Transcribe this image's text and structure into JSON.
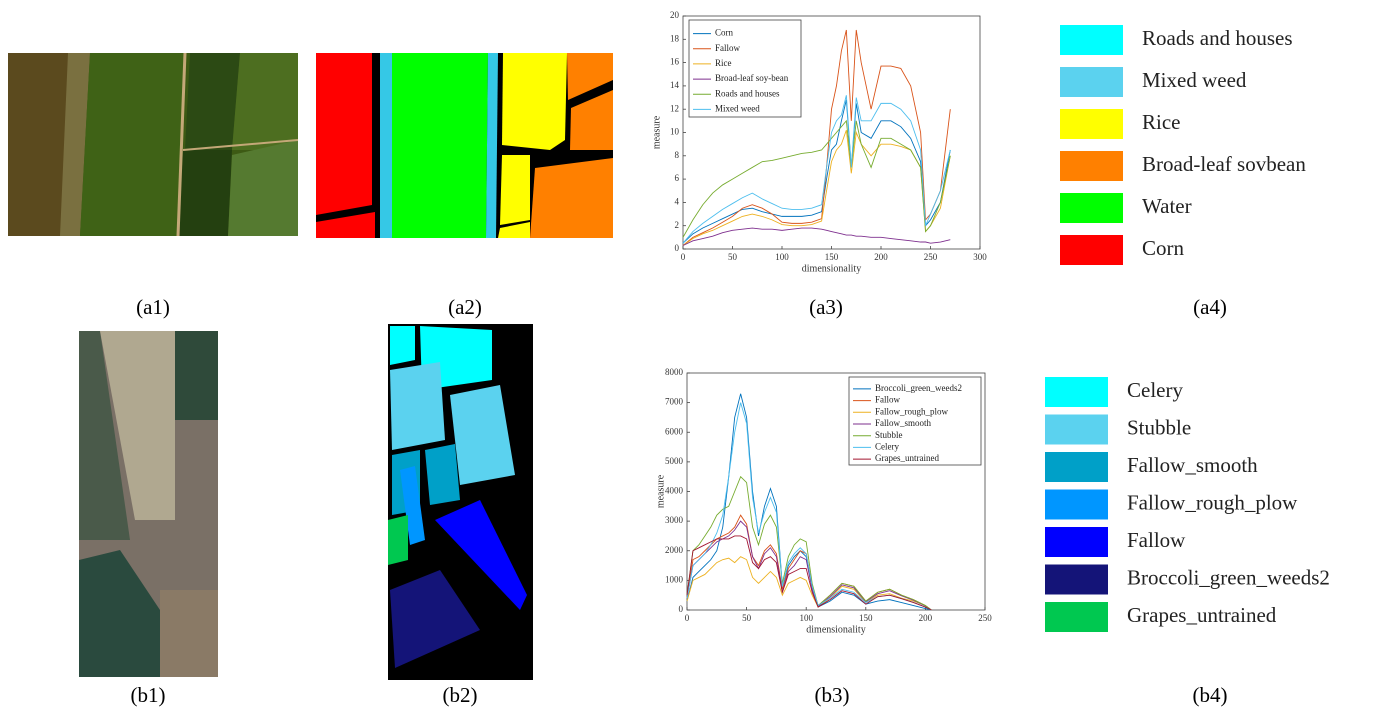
{
  "chart_data": [
    {
      "type": "line",
      "xlabel": "dimensionality",
      "ylabel": "measure",
      "legend": "upper left",
      "x": [
        0,
        10,
        20,
        30,
        40,
        50,
        60,
        70,
        80,
        90,
        100,
        110,
        120,
        130,
        140,
        145,
        150,
        155,
        160,
        165,
        170,
        175,
        180,
        190,
        200,
        210,
        220,
        230,
        240,
        245,
        250,
        260,
        270
      ],
      "xlim": [
        0,
        300
      ],
      "xticks": [
        0,
        50,
        100,
        150,
        200,
        250,
        300
      ],
      "ylim": [
        0,
        20
      ],
      "yticks": [
        0,
        2,
        4,
        6,
        8,
        10,
        12,
        14,
        16,
        18,
        20
      ],
      "series": [
        {
          "name": "Corn",
          "color": "#0072bd",
          "values": [
            0.5,
            1.3,
            1.8,
            2.2,
            2.6,
            3.0,
            3.4,
            3.5,
            3.2,
            3.0,
            2.8,
            2.8,
            2.8,
            2.9,
            3.2,
            6,
            8.5,
            9,
            11,
            12.8,
            7,
            12.5,
            10,
            9.5,
            11,
            11,
            10.5,
            9.5,
            7.5,
            2,
            2.5,
            4,
            8.5
          ]
        },
        {
          "name": "Fallow",
          "color": "#d95319",
          "values": [
            0.3,
            1,
            1.4,
            1.8,
            2.3,
            2.8,
            3.5,
            3.8,
            3.5,
            3,
            2.3,
            2.2,
            2.2,
            2.3,
            2.6,
            7,
            12,
            14,
            17,
            18.8,
            11,
            18.8,
            16,
            12,
            15.7,
            15.7,
            15.5,
            14,
            10,
            2.5,
            3,
            5,
            12
          ]
        },
        {
          "name": "Rice",
          "color": "#edb120",
          "values": [
            0.3,
            0.9,
            1.3,
            1.6,
            2,
            2.4,
            2.8,
            3,
            2.8,
            2.5,
            2.1,
            2,
            2,
            2.1,
            2.4,
            5,
            7.5,
            8.5,
            9,
            10.2,
            6.5,
            10,
            9,
            8,
            9,
            9,
            8.8,
            8.5,
            7,
            1.5,
            2,
            3.5,
            8
          ]
        },
        {
          "name": "Broad-leaf soy-bean",
          "color": "#7e2f8e",
          "values": [
            0.3,
            0.7,
            0.9,
            1.1,
            1.4,
            1.6,
            1.7,
            1.8,
            1.7,
            1.7,
            1.6,
            1.7,
            1.8,
            1.8,
            1.7,
            1.6,
            1.5,
            1.4,
            1.3,
            1.2,
            1.2,
            1.1,
            1.1,
            1,
            1,
            0.9,
            0.8,
            0.7,
            0.6,
            0.6,
            0.5,
            0.6,
            0.8
          ]
        },
        {
          "name": "Roads and houses",
          "color": "#77ac30",
          "values": [
            1,
            2.5,
            3.8,
            4.8,
            5.5,
            6,
            6.5,
            7,
            7.5,
            7.6,
            7.8,
            8,
            8.2,
            8.3,
            8.5,
            9,
            9.5,
            10,
            10.5,
            11,
            7,
            11,
            9,
            7,
            9.5,
            9.5,
            9,
            8.5,
            7,
            1.5,
            2,
            4,
            8
          ]
        },
        {
          "name": "Mixed weed",
          "color": "#4dbeee",
          "values": [
            0.5,
            1.5,
            2.2,
            2.8,
            3.4,
            3.9,
            4.4,
            4.8,
            4.3,
            3.9,
            3.5,
            3.4,
            3.4,
            3.5,
            3.8,
            7,
            10,
            11,
            11.5,
            13.2,
            7,
            13,
            11,
            11,
            12.5,
            12.5,
            12,
            11,
            8.5,
            2,
            3,
            5,
            8.5
          ]
        }
      ]
    },
    {
      "type": "line",
      "xlabel": "dimensionality",
      "ylabel": "measure",
      "legend": "upper right",
      "x": [
        0,
        5,
        10,
        15,
        20,
        25,
        30,
        35,
        40,
        45,
        50,
        55,
        60,
        65,
        70,
        75,
        80,
        85,
        90,
        95,
        100,
        105,
        110,
        120,
        130,
        140,
        150,
        160,
        170,
        180,
        190,
        200,
        205
      ],
      "xlim": [
        0,
        250
      ],
      "xticks": [
        0,
        50,
        100,
        150,
        200,
        250
      ],
      "ylim": [
        0,
        8000
      ],
      "yticks": [
        0,
        1000,
        2000,
        3000,
        4000,
        5000,
        6000,
        7000,
        8000
      ],
      "series": [
        {
          "name": "Broccoli_green_weeds2",
          "color": "#0072bd",
          "values": [
            300,
            1100,
            1300,
            1500,
            1700,
            2000,
            2800,
            4500,
            6500,
            7300,
            6500,
            4000,
            2500,
            3500,
            4100,
            3500,
            800,
            1500,
            1800,
            2000,
            1800,
            700,
            100,
            300,
            600,
            500,
            200,
            300,
            350,
            250,
            150,
            50,
            0
          ]
        },
        {
          "name": "Fallow",
          "color": "#d95319",
          "values": [
            400,
            1700,
            1800,
            2000,
            2200,
            2400,
            2500,
            2600,
            2800,
            3200,
            2900,
            1800,
            1500,
            2000,
            2200,
            1900,
            700,
            1400,
            1700,
            2000,
            1900,
            800,
            150,
            500,
            900,
            800,
            300,
            600,
            700,
            500,
            350,
            150,
            0
          ]
        },
        {
          "name": "Fallow_rough_plow",
          "color": "#edb120",
          "values": [
            300,
            1000,
            1100,
            1200,
            1400,
            1600,
            1700,
            1750,
            1600,
            1800,
            1700,
            1100,
            900,
            1100,
            1300,
            1100,
            500,
            900,
            1000,
            1100,
            1000,
            500,
            100,
            400,
            800,
            700,
            250,
            500,
            550,
            400,
            300,
            150,
            0
          ]
        },
        {
          "name": "Fallow_smooth",
          "color": "#7e2f8e",
          "values": [
            400,
            1500,
            1700,
            1900,
            2100,
            2300,
            2400,
            2500,
            2700,
            3000,
            2800,
            1800,
            1400,
            1900,
            2100,
            1800,
            600,
            1300,
            1500,
            1800,
            1700,
            700,
            120,
            450,
            850,
            750,
            280,
            550,
            650,
            480,
            330,
            140,
            0
          ]
        },
        {
          "name": "Stubble",
          "color": "#77ac30",
          "values": [
            500,
            2000,
            2200,
            2500,
            2800,
            3200,
            3400,
            3500,
            4000,
            4500,
            4300,
            2800,
            2200,
            2900,
            3200,
            2800,
            900,
            1800,
            2200,
            2400,
            2300,
            900,
            150,
            500,
            900,
            800,
            300,
            600,
            700,
            500,
            350,
            150,
            0
          ]
        },
        {
          "name": "Celery",
          "color": "#4dbeee",
          "values": [
            400,
            1500,
            1700,
            1900,
            2200,
            2600,
            3200,
            4500,
            6000,
            7000,
            6300,
            3800,
            2600,
            3300,
            3800,
            3300,
            800,
            1600,
            1900,
            2100,
            1900,
            800,
            150,
            400,
            700,
            600,
            250,
            450,
            500,
            380,
            260,
            100,
            0
          ]
        },
        {
          "name": "Grapes_untrained",
          "color": "#a2142f",
          "values": [
            500,
            2000,
            2100,
            2200,
            2300,
            2400,
            2400,
            2400,
            2500,
            2500,
            2400,
            1600,
            1400,
            1700,
            1800,
            1600,
            600,
            1200,
            1300,
            1400,
            1400,
            600,
            100,
            350,
            650,
            550,
            200,
            450,
            500,
            380,
            250,
            100,
            0
          ]
        }
      ]
    }
  ],
  "panel_labels": [
    "(a1)",
    "(a2)",
    "(a3)",
    "(a4)",
    "(b1)",
    "(b2)",
    "(b3)",
    "(b4)"
  ],
  "class_legends": [
    {
      "items": [
        {
          "label": "Roads and houses",
          "color": "#00ffff"
        },
        {
          "label": "Mixed weed",
          "color": "#5bd2ef"
        },
        {
          "label": "Rice",
          "color": "#ffff00"
        },
        {
          "label": "Broad-leaf sovbean",
          "color": "#ff8000"
        },
        {
          "label": "Water",
          "color": "#00ff00"
        },
        {
          "label": "Corn",
          "color": "#ff0000"
        }
      ]
    },
    {
      "items": [
        {
          "label": "Celery",
          "color": "#00ffff"
        },
        {
          "label": "Stubble",
          "color": "#5bd2ef"
        },
        {
          "label": "Fallow_smooth",
          "color": "#00a0c8"
        },
        {
          "label": "Fallow_rough_plow",
          "color": "#0096ff"
        },
        {
          "label": "Fallow",
          "color": "#0000ff"
        },
        {
          "label": "Broccoli_green_weeds2",
          "color": "#141478"
        },
        {
          "label": "Grapes_untrained",
          "color": "#00c850"
        }
      ]
    }
  ]
}
